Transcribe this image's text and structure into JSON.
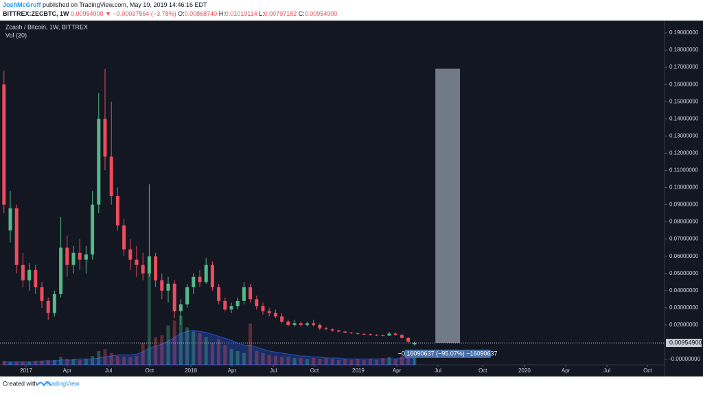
{
  "header": {
    "author": "JoshMcGruff",
    "published": " published on TradingView.com, May 19, 2019 14:46:16 EDT",
    "symbol": "BITTREX:ZECBTC, 1W",
    "last": "0.00954900",
    "arrow": "▼",
    "change": "−0.00037564 (−3.78%)",
    "o_label": "O:",
    "o": "0.00868740",
    "h_label": "H:",
    "h": "0.01019114",
    "l_label": "L:",
    "l": "0.00797182",
    "c_label": "C:",
    "c": "0.00954900"
  },
  "footer": {
    "created": "Created with",
    "brand": "TradingView"
  },
  "chart_data": {
    "type": "candlestick",
    "title": "Zcash / Bitcoin, 1W, BITTREX",
    "volume_label": "Vol (20)",
    "up_color": "#53b987",
    "down_color": "#eb4d5c",
    "volume_ma_color": "#2962ff",
    "x": [
      -7,
      -5,
      -3,
      -1,
      1,
      3,
      5,
      7,
      9,
      11,
      13,
      15,
      17,
      19,
      21,
      23,
      25,
      27,
      29,
      31,
      33,
      35,
      37,
      39,
      41,
      43,
      45,
      47,
      49,
      51,
      53,
      55,
      57,
      59,
      61,
      63,
      65,
      67,
      69,
      71,
      73,
      75,
      77,
      79,
      81,
      83,
      85,
      87,
      89,
      91,
      93,
      95,
      97,
      99,
      101,
      103,
      105,
      107,
      109,
      111,
      113,
      115,
      117,
      119,
      121,
      123
    ],
    "open": [
      0.16,
      0.075,
      0.088,
      0.055,
      0.046,
      0.052,
      0.042,
      0.034,
      0.027,
      0.038,
      0.065,
      0.055,
      0.062,
      0.058,
      0.061,
      0.09,
      0.14,
      0.118,
      0.095,
      0.078,
      0.064,
      0.058,
      0.055,
      0.05,
      0.06,
      0.046,
      0.04,
      0.044,
      0.028,
      0.032,
      0.042,
      0.048,
      0.045,
      0.055,
      0.042,
      0.034,
      0.029,
      0.031,
      0.034,
      0.042,
      0.035,
      0.031,
      0.028,
      0.027,
      0.025,
      0.022,
      0.02,
      0.021,
      0.02,
      0.021,
      0.02,
      0.018,
      0.0175,
      0.0168,
      0.0162,
      0.0156,
      0.0152,
      0.0148,
      0.0146,
      0.0142,
      0.014,
      0.0138,
      0.015,
      0.0142,
      0.0125,
      0.0086874
    ],
    "high": [
      0.168,
      0.098,
      0.09,
      0.062,
      0.056,
      0.055,
      0.045,
      0.036,
      0.04,
      0.083,
      0.072,
      0.066,
      0.07,
      0.066,
      0.098,
      0.155,
      0.169,
      0.15,
      0.1,
      0.082,
      0.07,
      0.066,
      0.062,
      0.102,
      0.062,
      0.05,
      0.048,
      0.046,
      0.035,
      0.044,
      0.05,
      0.052,
      0.059,
      0.057,
      0.044,
      0.036,
      0.033,
      0.036,
      0.045,
      0.044,
      0.037,
      0.033,
      0.03,
      0.029,
      0.027,
      0.023,
      0.023,
      0.022,
      0.022,
      0.023,
      0.021,
      0.019,
      0.018,
      0.0172,
      0.0166,
      0.016,
      0.0156,
      0.0152,
      0.015,
      0.0146,
      0.0144,
      0.016,
      0.0156,
      0.0146,
      0.0128,
      0.01019114
    ],
    "low": [
      0.085,
      0.068,
      0.05,
      0.042,
      0.04,
      0.038,
      0.03,
      0.023,
      0.025,
      0.036,
      0.048,
      0.05,
      0.052,
      0.05,
      0.058,
      0.085,
      0.11,
      0.09,
      0.075,
      0.06,
      0.052,
      0.048,
      0.046,
      0.048,
      0.042,
      0.035,
      0.033,
      0.024,
      0.02,
      0.03,
      0.038,
      0.042,
      0.044,
      0.04,
      0.032,
      0.028,
      0.027,
      0.029,
      0.032,
      0.033,
      0.029,
      0.026,
      0.025,
      0.024,
      0.021,
      0.019,
      0.019,
      0.019,
      0.019,
      0.019,
      0.017,
      0.017,
      0.0162,
      0.0158,
      0.0152,
      0.0148,
      0.0144,
      0.0142,
      0.0138,
      0.0136,
      0.0134,
      0.0136,
      0.0138,
      0.012,
      0.0098,
      0.00797182
    ],
    "close": [
      0.09,
      0.088,
      0.055,
      0.046,
      0.052,
      0.042,
      0.034,
      0.027,
      0.038,
      0.065,
      0.055,
      0.062,
      0.058,
      0.061,
      0.09,
      0.14,
      0.118,
      0.095,
      0.078,
      0.064,
      0.058,
      0.055,
      0.05,
      0.06,
      0.046,
      0.04,
      0.044,
      0.028,
      0.032,
      0.042,
      0.048,
      0.045,
      0.055,
      0.042,
      0.034,
      0.029,
      0.031,
      0.034,
      0.042,
      0.035,
      0.031,
      0.028,
      0.027,
      0.025,
      0.022,
      0.02,
      0.021,
      0.02,
      0.021,
      0.02,
      0.018,
      0.0175,
      0.0168,
      0.0162,
      0.0156,
      0.0152,
      0.0148,
      0.0146,
      0.0142,
      0.014,
      0.0138,
      0.015,
      0.0142,
      0.0125,
      0.0102,
      0.009549
    ],
    "volume": [
      4,
      3,
      3,
      3,
      3,
      4,
      4,
      5,
      5,
      8,
      6,
      6,
      5,
      6,
      9,
      14,
      16,
      12,
      9,
      8,
      8,
      9,
      22,
      100,
      28,
      30,
      40,
      45,
      50,
      38,
      34,
      32,
      28,
      22,
      26,
      20,
      16,
      14,
      12,
      42,
      14,
      12,
      10,
      9,
      8,
      8,
      7,
      7,
      6,
      7,
      6,
      7,
      6,
      5,
      6,
      5,
      6,
      5,
      6,
      5,
      7,
      8,
      6,
      9,
      10,
      8
    ],
    "volume_ma": [
      3,
      3,
      3,
      3,
      3,
      3,
      4,
      4,
      4,
      5,
      5,
      5,
      6,
      6,
      6,
      7,
      8,
      9,
      10,
      10,
      10,
      11,
      13,
      17,
      19,
      21,
      24,
      28,
      32,
      34,
      35,
      34,
      33,
      31,
      29,
      27,
      25,
      22,
      20,
      20,
      18,
      16,
      14,
      13,
      12,
      11,
      10,
      9,
      9,
      8,
      8,
      7,
      7,
      7,
      6,
      6,
      6,
      6,
      6,
      6,
      6,
      6,
      6,
      7,
      7,
      7
    ],
    "vlim": [
      0,
      350
    ],
    "xlim": [
      -8.26,
      202.17
    ],
    "xticks": [
      {
        "value": 0,
        "label": "2017"
      },
      {
        "value": 13.0,
        "label": "Apr"
      },
      {
        "value": 26.1,
        "label": "Jul"
      },
      {
        "value": 39.1,
        "label": "Oct"
      },
      {
        "value": 52.2,
        "label": "2018"
      },
      {
        "value": 65.2,
        "label": "Apr"
      },
      {
        "value": 78.3,
        "label": "Jul"
      },
      {
        "value": 91.3,
        "label": "Oct"
      },
      {
        "value": 105.2,
        "label": "2019"
      },
      {
        "value": 117.4,
        "label": "Apr"
      },
      {
        "value": 130.4,
        "label": "Jul"
      },
      {
        "value": 144.6,
        "label": "Oct"
      },
      {
        "value": 157.8,
        "label": "2020"
      },
      {
        "value": 170.9,
        "label": "Apr"
      },
      {
        "value": 183.9,
        "label": "Jul"
      },
      {
        "value": 196.8,
        "label": "Oct"
      }
    ],
    "ylim": [
      -0.0032,
      0.1972
    ],
    "yticks": [
      {
        "value": 0,
        "label": "-0.00000000"
      },
      {
        "value": 0.02,
        "label": "0.02000000"
      },
      {
        "value": 0.03,
        "label": "0.03000000"
      },
      {
        "value": 0.04,
        "label": "0.04000000"
      },
      {
        "value": 0.05,
        "label": "0.05000000"
      },
      {
        "value": 0.06,
        "label": "0.06000000"
      },
      {
        "value": 0.07,
        "label": "0.07000000"
      },
      {
        "value": 0.08,
        "label": "0.08000000"
      },
      {
        "value": 0.09,
        "label": "0.09000000"
      },
      {
        "value": 0.1,
        "label": "0.10000000"
      },
      {
        "value": 0.11,
        "label": "0.11000000"
      },
      {
        "value": 0.12,
        "label": "0.12000000"
      },
      {
        "value": 0.13,
        "label": "0.13000000"
      },
      {
        "value": 0.14,
        "label": "0.14000000"
      },
      {
        "value": 0.15,
        "label": "0.15000000"
      },
      {
        "value": 0.16,
        "label": "0.16000000"
      },
      {
        "value": 0.17,
        "label": "0.17000000"
      },
      {
        "value": 0.18,
        "label": "0.18000000"
      },
      {
        "value": 0.19,
        "label": "0.19000000"
      }
    ],
    "grid": false,
    "last_price": {
      "value": 0.009549,
      "label": "0.00954900"
    },
    "range_box": {
      "x": [
        129.6,
        137.4
      ],
      "y": [
        0.0096,
        0.1692
      ],
      "label": "−0.16090637 (−95.07%) −16090637"
    }
  }
}
